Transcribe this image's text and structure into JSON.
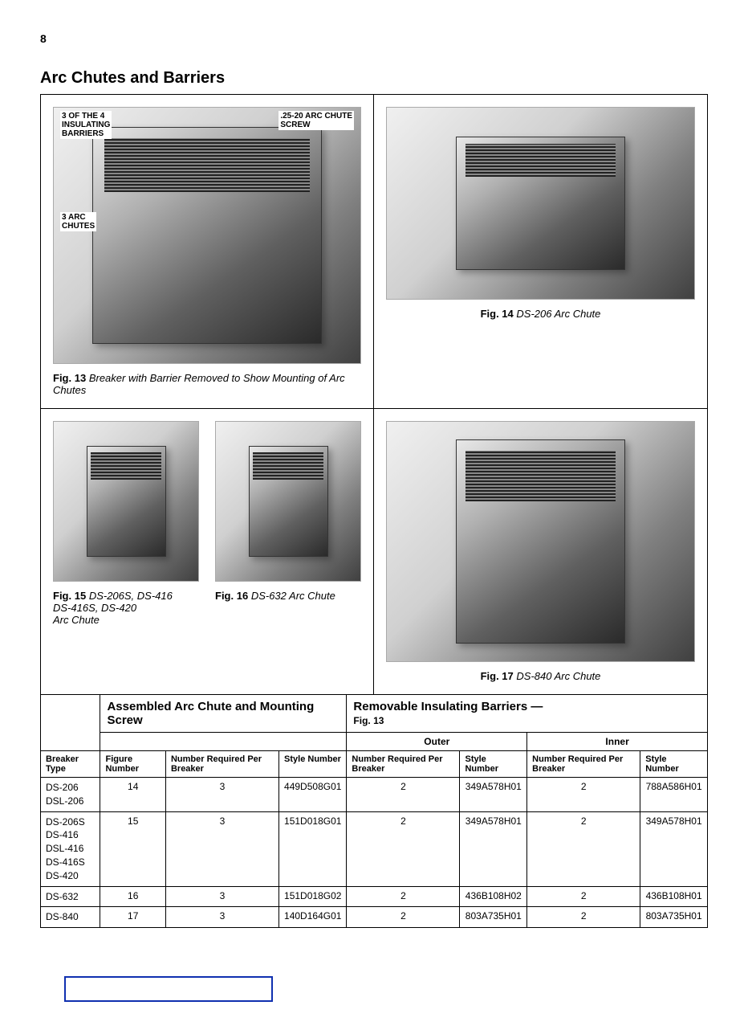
{
  "page_number": "8",
  "section_title": "Arc Chutes and Barriers",
  "fig13": {
    "num": "Fig. 13",
    "desc": "Breaker with Barrier Removed to Show Mounting of Arc Chutes",
    "label_barriers": "3 OF THE 4\nINSULATING\nBARRIERS",
    "label_screw": ".25-20 ARC CHUTE\nSCREW",
    "label_chutes": "3 ARC\nCHUTES"
  },
  "fig14": {
    "num": "Fig. 14",
    "desc": "DS-206 Arc Chute"
  },
  "fig15": {
    "num": "Fig. 15",
    "desc": "DS-206S, DS-416\nDS-416S, DS-420\nArc Chute"
  },
  "fig16": {
    "num": "Fig. 16",
    "desc": "DS-632 Arc Chute"
  },
  "fig17": {
    "num": "Fig. 17",
    "desc": "DS-840 Arc Chute"
  },
  "table": {
    "group1_title": "Assembled Arc Chute and Mounting Screw",
    "group2_title": "Removable Insulating Barriers —",
    "group2_sub": "Fig. 13",
    "outer_label": "Outer",
    "inner_label": "Inner",
    "col_breaker": "Breaker Type",
    "col_fignum": "Figure Number",
    "col_numreq": "Number Required Per Breaker",
    "col_style": "Style Number",
    "rows": [
      {
        "breaker": "DS-206\nDSL-206",
        "fig": "14",
        "qty1": "3",
        "style1": "449D508G01",
        "qty2": "2",
        "style2": "349A578H01",
        "qty3": "2",
        "style3": "788A586H01"
      },
      {
        "breaker": "DS-206S\nDS-416\nDSL-416\nDS-416S\nDS-420",
        "fig": "15",
        "qty1": "3",
        "style1": "151D018G01",
        "qty2": "2",
        "style2": "349A578H01",
        "qty3": "2",
        "style3": "349A578H01"
      },
      {
        "breaker": "DS-632",
        "fig": "16",
        "qty1": "3",
        "style1": "151D018G02",
        "qty2": "2",
        "style2": "436B108H02",
        "qty3": "2",
        "style3": "436B108H01"
      },
      {
        "breaker": "DS-840",
        "fig": "17",
        "qty1": "3",
        "style1": "140D164G01",
        "qty2": "2",
        "style2": "803A735H01",
        "qty3": "2",
        "style3": "803A735H01"
      }
    ]
  }
}
